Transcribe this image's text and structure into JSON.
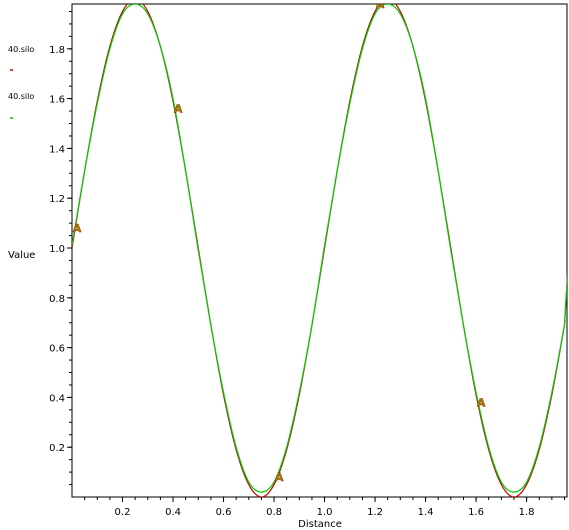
{
  "chart_data": {
    "type": "line",
    "xlabel": "Distance",
    "ylabel": "Value",
    "xlim": [
      0,
      1.96
    ],
    "ylim": [
      0.0,
      1.98
    ],
    "xticks": [
      0.2,
      0.4,
      0.6,
      0.8,
      1.0,
      1.2,
      1.4,
      1.6,
      1.8
    ],
    "xtick_labels": [
      "0.2",
      "0.4",
      "0.6",
      "0.8",
      "1.0",
      "1.2",
      "1.4",
      "1.6",
      "1.8"
    ],
    "yticks": [
      0.2,
      0.4,
      0.6,
      0.8,
      1.0,
      1.2,
      1.4,
      1.6,
      1.8
    ],
    "ytick_labels": [
      "0.2",
      "0.4",
      "0.6",
      "0.8",
      "1.0",
      "1.2",
      "1.4",
      "1.6",
      "1.8"
    ],
    "grid": false,
    "legend_position": "top-left",
    "series": [
      {
        "name": "40.silo",
        "color": "#cc0000",
        "x": [
          0.0,
          0.05,
          0.1,
          0.15,
          0.2,
          0.25,
          0.3,
          0.35,
          0.4,
          0.45,
          0.5,
          0.55,
          0.6,
          0.65,
          0.7,
          0.75,
          0.8,
          0.85,
          0.9,
          0.95,
          1.0,
          1.05,
          1.1,
          1.15,
          1.2,
          1.25,
          1.3,
          1.35,
          1.4,
          1.45,
          1.5,
          1.55,
          1.6,
          1.65,
          1.7,
          1.75,
          1.8,
          1.85,
          1.9,
          1.95
        ],
        "y": [
          1.0,
          1.31,
          1.59,
          1.81,
          1.95,
          2.0,
          1.95,
          1.81,
          1.59,
          1.31,
          1.0,
          0.69,
          0.41,
          0.19,
          0.05,
          0.0,
          0.05,
          0.19,
          0.41,
          0.69,
          1.0,
          1.31,
          1.59,
          1.81,
          1.95,
          2.0,
          1.95,
          1.81,
          1.59,
          1.31,
          1.0,
          0.69,
          0.41,
          0.19,
          0.05,
          0.0,
          0.05,
          0.19,
          0.41,
          0.69
        ]
      },
      {
        "name": "40.silo",
        "color": "#00cc00",
        "x": [
          0.0,
          0.05,
          0.1,
          0.15,
          0.2,
          0.25,
          0.3,
          0.35,
          0.4,
          0.45,
          0.5,
          0.55,
          0.6,
          0.65,
          0.7,
          0.75,
          0.8,
          0.85,
          0.9,
          0.95,
          1.0,
          1.05,
          1.1,
          1.15,
          1.2,
          1.25,
          1.3,
          1.35,
          1.4,
          1.45,
          1.5,
          1.55,
          1.6,
          1.65,
          1.7,
          1.75,
          1.8,
          1.85,
          1.9,
          1.95
        ],
        "y": [
          1.01,
          1.31,
          1.58,
          1.8,
          1.94,
          1.98,
          1.94,
          1.81,
          1.6,
          1.31,
          0.99,
          0.69,
          0.42,
          0.2,
          0.06,
          0.02,
          0.06,
          0.2,
          0.42,
          0.69,
          1.01,
          1.31,
          1.58,
          1.8,
          1.94,
          1.98,
          1.94,
          1.81,
          1.6,
          1.31,
          0.99,
          0.69,
          0.42,
          0.2,
          0.06,
          0.02,
          0.06,
          0.2,
          0.42,
          0.69
        ]
      }
    ],
    "markers": [
      {
        "label": "A",
        "x": 0.02,
        "y": 1.08
      },
      {
        "label": "A",
        "x": 0.42,
        "y": 1.56
      },
      {
        "label": "A",
        "x": 0.82,
        "y": 0.08
      },
      {
        "label": "A",
        "x": 1.22,
        "y": 1.98
      },
      {
        "label": "A",
        "x": 1.62,
        "y": 0.38
      }
    ]
  }
}
